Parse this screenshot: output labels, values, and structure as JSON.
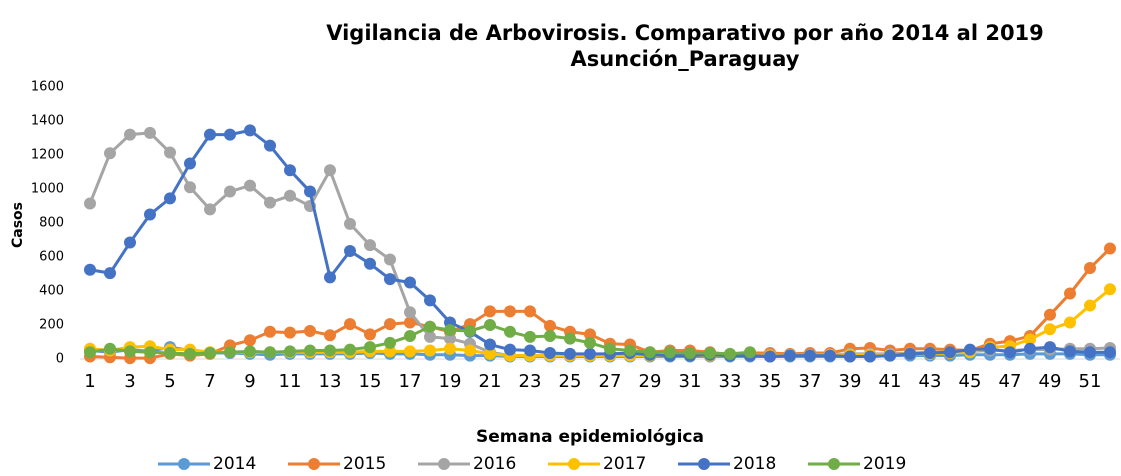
{
  "chart_data": {
    "type": "line",
    "title": "Vigilancia de Arbovirosis. Comparativo por año 2014 al 2019",
    "subtitle": "Asunción_Paraguay",
    "x_label": "Semana epidemiológica",
    "y_label": "Casos",
    "categories": [
      1,
      null,
      3,
      null,
      5,
      null,
      7,
      null,
      9,
      null,
      11,
      null,
      13,
      null,
      15,
      null,
      17,
      null,
      19,
      null,
      21,
      null,
      23,
      null,
      25,
      null,
      27,
      null,
      29,
      null,
      31,
      null,
      33,
      null,
      35,
      null,
      37,
      null,
      39,
      null,
      41,
      null,
      43,
      null,
      45,
      null,
      47,
      null,
      49,
      null,
      51,
      null
    ],
    "ylim": [
      0,
      1600
    ],
    "yticks": [
      0,
      200,
      400,
      600,
      800,
      1000,
      1200,
      1400,
      1600
    ],
    "legend": "bottom",
    "series": [
      {
        "name": "2014",
        "color": "#5b9bd5",
        "values": [
          50,
          40,
          55,
          45,
          70,
          50,
          35,
          35,
          30,
          25,
          30,
          30,
          30,
          30,
          35,
          30,
          30,
          25,
          25,
          20,
          20,
          15,
          15,
          15,
          15,
          15,
          15,
          15,
          15,
          15,
          15,
          15,
          15,
          15,
          15,
          15,
          15,
          15,
          15,
          15,
          20,
          20,
          20,
          20,
          25,
          25,
          25,
          30,
          30,
          30,
          25,
          25
        ]
      },
      {
        "name": "2015",
        "color": "#ed7d31",
        "values": [
          15,
          10,
          5,
          5,
          30,
          20,
          30,
          80,
          110,
          160,
          155,
          165,
          140,
          205,
          145,
          205,
          215,
          190,
          160,
          205,
          280,
          280,
          280,
          195,
          160,
          145,
          90,
          85,
          40,
          50,
          50,
          40,
          25,
          35,
          35,
          30,
          35,
          35,
          60,
          65,
          50,
          60,
          60,
          55,
          50,
          90,
          105,
          135,
          260,
          385,
          535,
          650
        ]
      },
      {
        "name": "2016",
        "color": "#a5a5a5",
        "values": [
          915,
          1210,
          1320,
          1330,
          1215,
          1010,
          880,
          985,
          1020,
          920,
          960,
          900,
          1110,
          795,
          670,
          585,
          275,
          130,
          120,
          90,
          40,
          20,
          20,
          20,
          20,
          20,
          20,
          20,
          20,
          20,
          20,
          20,
          25,
          25,
          25,
          25,
          25,
          25,
          30,
          30,
          30,
          35,
          40,
          40,
          45,
          50,
          50,
          55,
          55,
          60,
          60,
          65
        ]
      },
      {
        "name": "2017",
        "color": "#ffc000",
        "values": [
          60,
          50,
          70,
          75,
          55,
          55,
          40,
          40,
          40,
          40,
          40,
          40,
          40,
          40,
          45,
          45,
          45,
          50,
          60,
          50,
          30,
          20,
          20,
          20,
          20,
          20,
          20,
          20,
          20,
          20,
          20,
          20,
          20,
          20,
          20,
          20,
          20,
          25,
          25,
          25,
          25,
          30,
          30,
          35,
          40,
          70,
          75,
          115,
          175,
          215,
          315,
          410
        ]
      },
      {
        "name": "2018",
        "color": "#4472c4",
        "values": [
          525,
          505,
          685,
          850,
          945,
          1150,
          1320,
          1320,
          1345,
          1255,
          1110,
          985,
          480,
          635,
          560,
          470,
          450,
          345,
          215,
          160,
          85,
          55,
          50,
          35,
          30,
          30,
          30,
          35,
          25,
          20,
          20,
          25,
          20,
          20,
          15,
          20,
          20,
          20,
          15,
          15,
          20,
          30,
          35,
          40,
          55,
          60,
          40,
          60,
          70,
          45,
          40,
          40
        ]
      },
      {
        "name": "2019",
        "color": "#70ad47",
        "values": [
          40,
          60,
          45,
          40,
          35,
          30,
          35,
          40,
          45,
          40,
          45,
          50,
          50,
          55,
          70,
          95,
          135,
          190,
          170,
          165,
          200,
          160,
          130,
          135,
          120,
          95,
          60,
          50,
          40,
          40,
          35,
          35,
          30,
          40,
          null,
          null,
          null,
          null,
          null,
          null,
          null,
          null,
          null,
          null,
          null,
          null,
          null,
          null,
          null,
          null,
          null,
          null
        ]
      }
    ]
  }
}
